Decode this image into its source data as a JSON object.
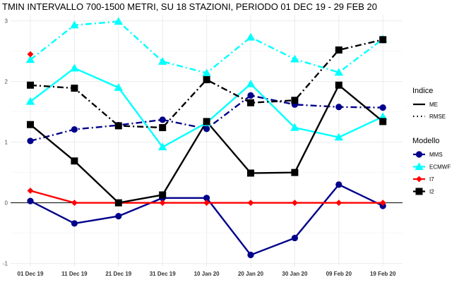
{
  "chart_data": {
    "type": "line",
    "title": "TMIN INTERVALLO 700-1500 METRI, SU 18 STAZIONI, PERIODO 01 DEC 19  -  29 FEB 20",
    "xlabel": "",
    "ylabel": "",
    "categories": [
      "01 Dec 19",
      "11 Dec 19",
      "21 Dec 19",
      "31 Dec 19",
      "10 Jan 20",
      "20 Jan 20",
      "30 Jan 20",
      "09 Feb 20",
      "19 Feb 20"
    ],
    "ylim": [
      -1.05,
      3.1
    ],
    "yticks": [
      -1,
      0,
      1,
      2,
      3
    ],
    "grid": true,
    "legend": {
      "position": "right",
      "linetype_title": "Indice",
      "linetype_entries": [
        "ME",
        "RMSE"
      ],
      "model_title": "Modello",
      "model_entries": [
        "MMS",
        "ECMWF",
        "I7",
        "I2"
      ]
    },
    "colors": {
      "MMS": "#00008b",
      "ECMWF": "#00ffff",
      "I7": "#ff0000",
      "I2": "#000000",
      "zero_line": "#000000"
    },
    "series": [
      {
        "name": "MMS",
        "index": "ME",
        "values": [
          0.03,
          -0.34,
          -0.22,
          0.08,
          0.08,
          -0.86,
          -0.58,
          0.3,
          -0.05
        ]
      },
      {
        "name": "MMS",
        "index": "RMSE",
        "values": [
          1.02,
          1.21,
          1.28,
          1.37,
          1.22,
          1.77,
          1.62,
          1.58,
          1.57
        ]
      },
      {
        "name": "ECMWF",
        "index": "ME",
        "values": [
          1.67,
          2.22,
          1.9,
          0.92,
          1.32,
          1.96,
          1.24,
          1.08,
          1.42
        ]
      },
      {
        "name": "ECMWF",
        "index": "RMSE",
        "values": [
          2.36,
          2.93,
          2.99,
          2.33,
          2.14,
          2.73,
          2.37,
          2.15,
          2.7
        ]
      },
      {
        "name": "I7",
        "index": "ME",
        "values": [
          0.2,
          0.0,
          0.0,
          0.0,
          0.0,
          0.0,
          0.0,
          0.0,
          0.0
        ]
      },
      {
        "name": "I7",
        "index": "RMSE",
        "values": [
          2.45,
          null,
          null,
          null,
          null,
          null,
          null,
          null,
          null
        ]
      },
      {
        "name": "I2",
        "index": "ME",
        "values": [
          1.29,
          0.69,
          0.0,
          0.13,
          1.34,
          0.49,
          0.5,
          1.94,
          1.34
        ]
      },
      {
        "name": "I2",
        "index": "RMSE",
        "values": [
          1.94,
          1.89,
          1.27,
          1.24,
          2.03,
          1.65,
          1.69,
          2.52,
          2.69
        ]
      }
    ]
  }
}
